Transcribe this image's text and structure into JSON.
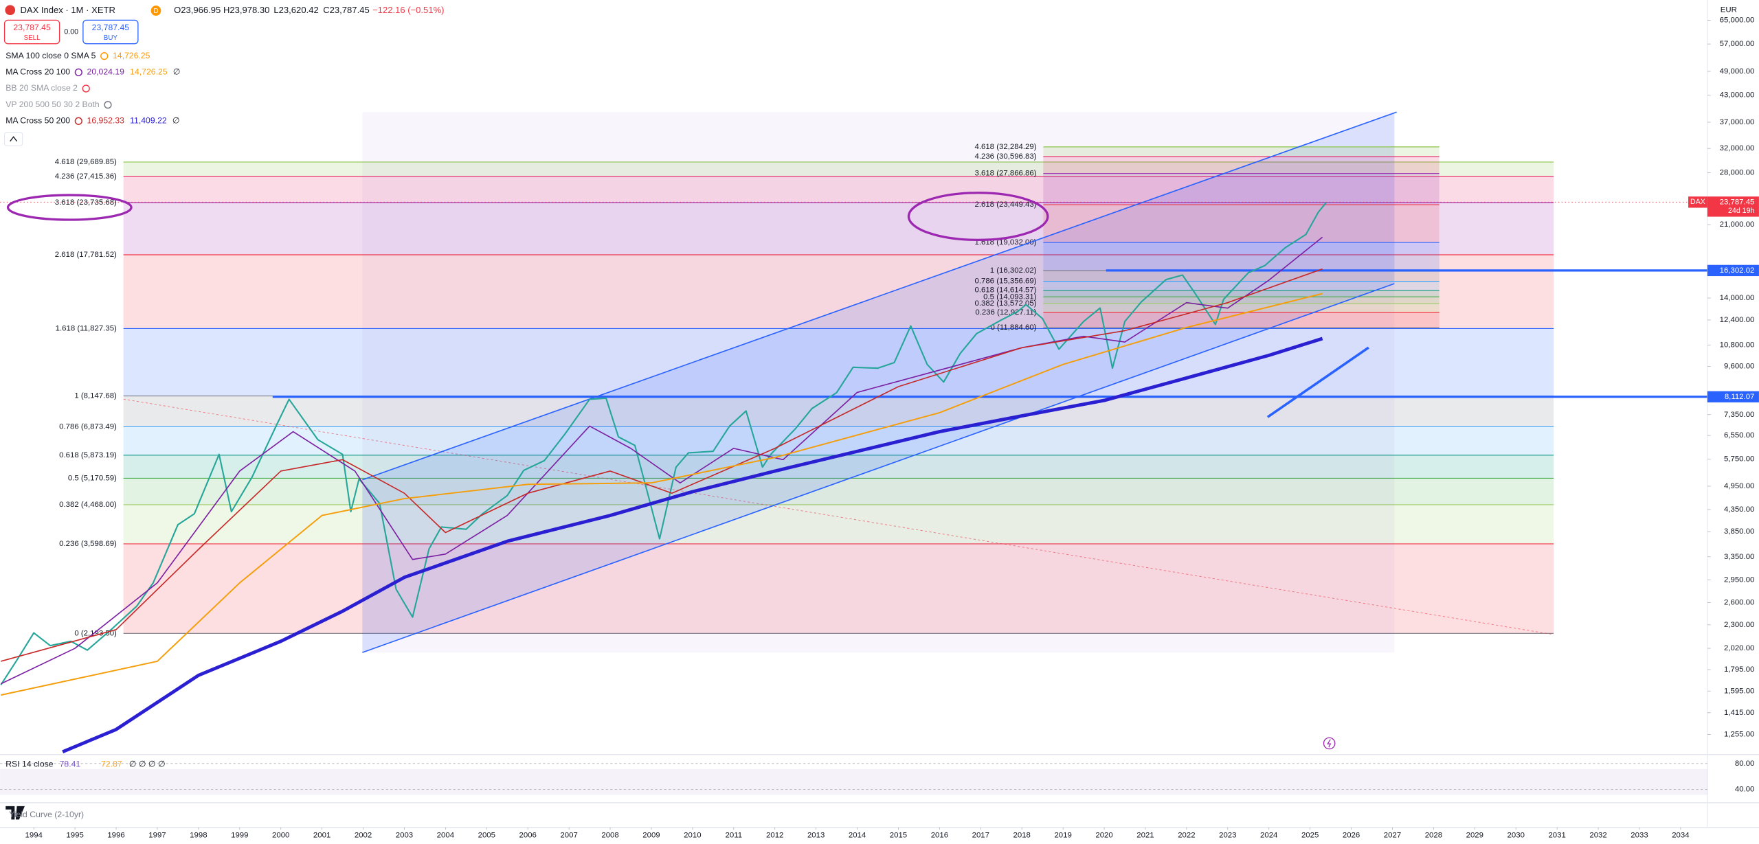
{
  "header": {
    "symbol": "DAX Index · 1M · XETR",
    "badge": "D",
    "open": "O23,966.95",
    "high": "H23,978.30",
    "low": "L23,620.42",
    "close": "C23,787.45",
    "change": "−122.16 (−0.51%)"
  },
  "trade": {
    "sell_price": "23,787.45",
    "sell": "SELL",
    "spread": "0.00",
    "buy_price": "23,787.45",
    "buy": "BUY"
  },
  "indicators": [
    {
      "name": "SMA 100 close 0 SMA 5",
      "values": [
        "14,726.25"
      ]
    },
    {
      "name": "MA Cross 20 100",
      "values": [
        "20,024.19",
        "14,726.25",
        "∅"
      ]
    },
    {
      "name": "BB 20 SMA close 2",
      "values": []
    },
    {
      "name": "VP 200 500 50 30 2 Both",
      "values": []
    },
    {
      "name": "MA Cross 50 200",
      "values": [
        "16,952.33",
        "11,409.22",
        "∅"
      ]
    }
  ],
  "chart_data": {
    "type": "line",
    "currency": "EUR",
    "log_scale": true,
    "xlim": [
      1993.18,
      2034.65
    ],
    "xticks": [
      1994,
      1995,
      1996,
      1997,
      1998,
      1999,
      2000,
      2001,
      2002,
      2003,
      2004,
      2005,
      2006,
      2007,
      2008,
      2009,
      2010,
      2011,
      2012,
      2013,
      2014,
      2015,
      2016,
      2017,
      2018,
      2019,
      2020,
      2021,
      2022,
      2023,
      2024,
      2025,
      2026,
      2027,
      2028,
      2029,
      2030,
      2031,
      2032,
      2033,
      2034
    ],
    "ylim": [
      1130,
      72700
    ],
    "yticks": [
      {
        "value": 65000,
        "label": "65,000.00"
      },
      {
        "value": 57000,
        "label": "57,000.00"
      },
      {
        "value": 49000,
        "label": "49,000.00"
      },
      {
        "value": 43000,
        "label": "43,000.00"
      },
      {
        "value": 37000,
        "label": "37,000.00"
      },
      {
        "value": 32000,
        "label": "32,000.00"
      },
      {
        "value": 28000,
        "label": "28,000.00"
      },
      {
        "value": 21000,
        "label": "21,000.00"
      },
      {
        "value": 14000,
        "label": "14,000.00"
      },
      {
        "value": 12400,
        "label": "12,400.00"
      },
      {
        "value": 10800,
        "label": "10,800.00"
      },
      {
        "value": 9600,
        "label": "9,600.00"
      },
      {
        "value": 7350,
        "label": "7,350.00"
      },
      {
        "value": 6550,
        "label": "6,550.00"
      },
      {
        "value": 5750,
        "label": "5,750.00"
      },
      {
        "value": 4950,
        "label": "4,950.00"
      },
      {
        "value": 4350,
        "label": "4,350.00"
      },
      {
        "value": 3850,
        "label": "3,850.00"
      },
      {
        "value": 3350,
        "label": "3,350.00"
      },
      {
        "value": 2950,
        "label": "2,950.00"
      },
      {
        "value": 2600,
        "label": "2,600.00"
      },
      {
        "value": 2300,
        "label": "2,300.00"
      },
      {
        "value": 2020,
        "label": "2,020.00"
      },
      {
        "value": 1795,
        "label": "1,795.00"
      },
      {
        "value": 1595,
        "label": "1,595.00"
      },
      {
        "value": 1415,
        "label": "1,415.00"
      },
      {
        "value": 1255,
        "label": "1,255.00"
      }
    ],
    "series": [
      {
        "name": "DAX",
        "color": "#26a69a",
        "x": [
          1993.2,
          1993.6,
          1994.0,
          1994.4,
          1994.9,
          1995.3,
          1995.9,
          1996.5,
          1996.9,
          1997.5,
          1997.9,
          1998.5,
          1998.8,
          1999.3,
          1999.9,
          2000.2,
          2000.9,
          2001.5,
          2001.7,
          2001.9,
          2002.4,
          2002.8,
          2003.2,
          2003.6,
          2003.9,
          2004.5,
          2004.9,
          2005.5,
          2005.9,
          2006.4,
          2006.9,
          2007.5,
          2007.9,
          2008.2,
          2008.6,
          2008.9,
          2009.2,
          2009.6,
          2009.9,
          2010.5,
          2010.9,
          2011.3,
          2011.7,
          2011.9,
          2012.5,
          2012.9,
          2013.5,
          2013.9,
          2014.5,
          2014.9,
          2015.3,
          2015.7,
          2016.1,
          2016.5,
          2016.9,
          2017.5,
          2017.9,
          2018.1,
          2018.5,
          2018.9,
          2019.5,
          2019.9,
          2020.2,
          2020.5,
          2020.9,
          2021.5,
          2021.9,
          2022.2,
          2022.7,
          2022.9,
          2023.5,
          2023.9,
          2024.4,
          2024.9,
          2025.2,
          2025.4
        ],
        "values": [
          1650,
          1900,
          2200,
          2050,
          2100,
          2000,
          2250,
          2550,
          2900,
          4000,
          4250,
          5900,
          4300,
          5200,
          6950,
          8000,
          6400,
          5900,
          4300,
          5150,
          4500,
          2800,
          2400,
          3500,
          3950,
          3900,
          4250,
          4700,
          5400,
          5700,
          6600,
          8000,
          8050,
          6500,
          6200,
          4800,
          3700,
          5500,
          5950,
          6000,
          6900,
          7500,
          5500,
          5900,
          6800,
          7600,
          8300,
          9550,
          9500,
          9800,
          12000,
          9700,
          8800,
          10300,
          11500,
          12400,
          13000,
          13500,
          12500,
          10550,
          12300,
          13250,
          9500,
          12300,
          13700,
          15500,
          15900,
          14400,
          12100,
          13900,
          16100,
          16750,
          18500,
          19900,
          22500,
          23787.45
        ]
      },
      {
        "color": "#7b1fa2",
        "width": 1,
        "x": [
          1993.2,
          1995,
          1997,
          1999,
          2000.3,
          2001.8,
          2003.2,
          2004,
          2005.5,
          2007.5,
          2008.5,
          2009.7,
          2011,
          2012.2,
          2014,
          2016,
          2018,
          2019.5,
          2020.5,
          2022,
          2023,
          2024,
          2025.3
        ],
        "values": [
          1660,
          2020,
          2900,
          5380,
          6690,
          5380,
          3300,
          3400,
          4210,
          6900,
          6100,
          5040,
          6100,
          5730,
          8310,
          9400,
          10640,
          11330,
          10980,
          13650,
          13240,
          15450,
          19600
        ]
      },
      {
        "color": "#c62828",
        "width": 1,
        "x": [
          1993.2,
          1996,
          1998,
          2000,
          2001.5,
          2003,
          2004,
          2006,
          2008,
          2009.5,
          2012,
          2015,
          2018,
          2020.5,
          2023,
          2025.3
        ],
        "values": [
          1880,
          2240,
          3490,
          5380,
          5730,
          4760,
          3830,
          4760,
          5380,
          4760,
          6100,
          8580,
          10640,
          11690,
          13650,
          16440
        ]
      },
      {
        "color": "#f59e0b",
        "width": 1.2,
        "x": [
          1993.2,
          1997,
          1999,
          2001,
          2003,
          2006,
          2009,
          2012,
          2016,
          2019,
          2022,
          2025.3
        ],
        "values": [
          1560,
          1880,
          2900,
          4210,
          4620,
          5000,
          5040,
          5800,
          7430,
          9700,
          11900,
          14350
        ]
      },
      {
        "color": "#2a1fd1",
        "width": 3,
        "x": [
          1994.7,
          1996,
          1998,
          2000,
          2001.5,
          2003,
          2005.5,
          2008,
          2010,
          2012,
          2014,
          2016,
          2018,
          2020,
          2022,
          2024,
          2025.3
        ],
        "values": [
          1140,
          1290,
          1740,
          2100,
          2480,
          2990,
          3650,
          4210,
          4800,
          5380,
          6000,
          6690,
          7300,
          7950,
          9000,
          10200,
          11190
        ]
      }
    ],
    "last_price": {
      "value": 23787.45,
      "label": "23,787.45",
      "countdown": "24d 19h",
      "color": "#f23645"
    },
    "hlines": [
      {
        "value": 16302.02,
        "label": "16,302.02",
        "color": "#2962ff"
      },
      {
        "value": 8112.07,
        "label": "8,112.07",
        "color": "#2962ff"
      }
    ],
    "fib_left": [
      {
        "label": "0 (2,193.50)",
        "value": 2193.5,
        "color": "#787b86"
      },
      {
        "label": "0.236 (3,598.69)",
        "value": 3598.69,
        "color": "#f23645"
      },
      {
        "label": "0.382 (4,468.00)",
        "value": 4468.0,
        "color": "#9ccc65"
      },
      {
        "label": "0.5 (5,170.59)",
        "value": 5170.59,
        "color": "#4caf50"
      },
      {
        "label": "0.618 (5,873.19)",
        "value": 5873.19,
        "color": "#089981"
      },
      {
        "label": "0.786 (6,873.49)",
        "value": 6873.49,
        "color": "#42a5f5"
      },
      {
        "label": "1 (8,147.68)",
        "value": 8147.68,
        "color": "#787b86"
      },
      {
        "label": "1.618 (11,827.35)",
        "value": 11827.35,
        "color": "#2962ff"
      },
      {
        "label": "2.618 (17,781.52)",
        "value": 17781.52,
        "color": "#f23645"
      },
      {
        "label": "3.618 (23,735.68)",
        "value": 23735.68,
        "color": "#9c27b0"
      },
      {
        "label": "4.236 (27,415.36)",
        "value": 27415.36,
        "color": "#e91e63"
      },
      {
        "label": "4.618 (29,689.85)",
        "value": 29689.85,
        "color": "#8bc34a"
      }
    ],
    "fib_right": [
      {
        "label": "0 (11,884.60)",
        "value": 11884.6,
        "color": "#787b86"
      },
      {
        "label": "0.236 (12,927.11)",
        "value": 12927.11,
        "color": "#f23645"
      },
      {
        "label": "0.382 (13,572.05)",
        "value": 13572.05,
        "color": "#9ccc65"
      },
      {
        "label": "0.5 (14,093.31)",
        "value": 14093.31,
        "color": "#4caf50"
      },
      {
        "label": "0.618 (14,614.57)",
        "value": 14614.57,
        "color": "#089981"
      },
      {
        "label": "0.786 (15,356.69)",
        "value": 15356.69,
        "color": "#42a5f5"
      },
      {
        "label": "1 (16,302.02)",
        "value": 16302.02,
        "color": "#787b86"
      },
      {
        "label": "1.618 (19,032.00)",
        "value": 19032.0,
        "color": "#2962ff"
      },
      {
        "label": "2.618 (23,449.43)",
        "value": 23449.43,
        "color": "#f23645"
      },
      {
        "label": "3.618 (27,866.86)",
        "value": 27866.86,
        "color": "#9c27b0"
      },
      {
        "label": "4.236 (30,596.83)",
        "value": 30596.83,
        "color": "#e91e63"
      },
      {
        "label": "4.618 (32,284.29)",
        "value": 32284.29,
        "color": "#8bc34a"
      }
    ]
  },
  "rsi": {
    "name": "RSI 14 close",
    "values": [
      "78.41",
      "72.87"
    ],
    "flags": "∅ ∅ ∅ ∅",
    "ylim": [
      19,
      94
    ],
    "yticks": [
      {
        "value": 80,
        "label": "80.00"
      },
      {
        "value": 40,
        "label": "40.00"
      }
    ]
  },
  "yield_curve": "Yield Curve (2-10yr)"
}
